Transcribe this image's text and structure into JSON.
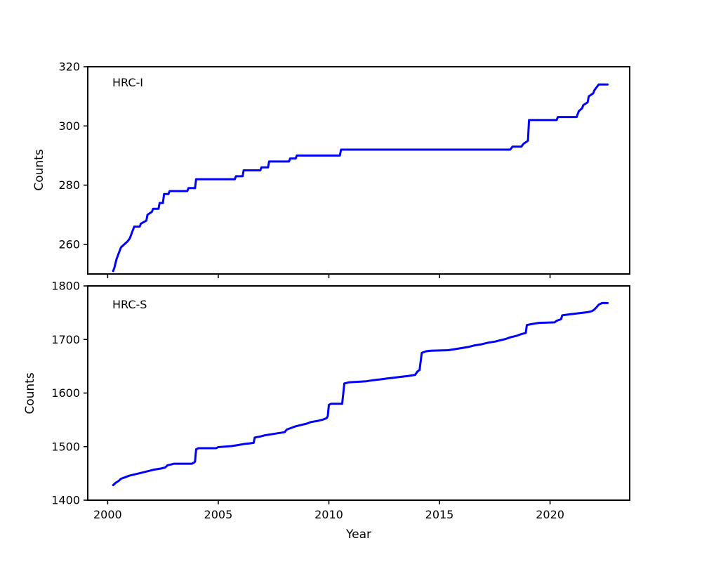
{
  "figure": {
    "background": "#ffffff",
    "axis_color": "#000000"
  },
  "chart_data": [
    {
      "type": "line",
      "label": "HRC-I",
      "ylabel": "Counts",
      "xlabel": "",
      "line_color": "#0000ff",
      "xlim": [
        1999.1,
        2023.6
      ],
      "ylim": [
        250,
        320
      ],
      "xticks": [
        2000,
        2005,
        2010,
        2015,
        2020
      ],
      "yticks": [
        260,
        280,
        300,
        320
      ],
      "show_xtick_labels": false,
      "grid": false,
      "points": [
        [
          2000.25,
          251
        ],
        [
          2000.3,
          252
        ],
        [
          2000.4,
          255
        ],
        [
          2000.5,
          257
        ],
        [
          2000.6,
          259
        ],
        [
          2000.75,
          260
        ],
        [
          2000.9,
          261
        ],
        [
          2001.0,
          262
        ],
        [
          2001.1,
          264
        ],
        [
          2001.2,
          266
        ],
        [
          2001.45,
          266
        ],
        [
          2001.5,
          267
        ],
        [
          2001.75,
          268
        ],
        [
          2001.8,
          270
        ],
        [
          2002.0,
          271
        ],
        [
          2002.05,
          272
        ],
        [
          2002.3,
          272
        ],
        [
          2002.35,
          274
        ],
        [
          2002.5,
          274
        ],
        [
          2002.55,
          277
        ],
        [
          2002.75,
          277
        ],
        [
          2002.8,
          278
        ],
        [
          2003.6,
          278
        ],
        [
          2003.65,
          279
        ],
        [
          2003.95,
          279
        ],
        [
          2004.0,
          282
        ],
        [
          2005.75,
          282
        ],
        [
          2005.8,
          283
        ],
        [
          2006.1,
          283
        ],
        [
          2006.15,
          285
        ],
        [
          2006.9,
          285
        ],
        [
          2006.95,
          286
        ],
        [
          2007.25,
          286
        ],
        [
          2007.3,
          288
        ],
        [
          2008.2,
          288
        ],
        [
          2008.25,
          289
        ],
        [
          2008.5,
          289
        ],
        [
          2008.55,
          290
        ],
        [
          2010.5,
          290
        ],
        [
          2010.55,
          292
        ],
        [
          2018.2,
          292
        ],
        [
          2018.3,
          293
        ],
        [
          2018.7,
          293
        ],
        [
          2018.8,
          294
        ],
        [
          2019.0,
          295
        ],
        [
          2019.05,
          302
        ],
        [
          2020.3,
          302
        ],
        [
          2020.35,
          303
        ],
        [
          2021.2,
          303
        ],
        [
          2021.3,
          305
        ],
        [
          2021.45,
          306
        ],
        [
          2021.5,
          307
        ],
        [
          2021.7,
          308
        ],
        [
          2021.75,
          310
        ],
        [
          2021.95,
          311
        ],
        [
          2022.0,
          312
        ],
        [
          2022.1,
          313
        ],
        [
          2022.2,
          314
        ],
        [
          2022.6,
          314
        ]
      ]
    },
    {
      "type": "line",
      "label": "HRC-S",
      "ylabel": "Counts",
      "xlabel": "Year",
      "line_color": "#0000ff",
      "xlim": [
        1999.1,
        2023.6
      ],
      "ylim": [
        1400,
        1800
      ],
      "xticks": [
        2000,
        2005,
        2010,
        2015,
        2020
      ],
      "yticks": [
        1400,
        1500,
        1600,
        1700,
        1800
      ],
      "show_xtick_labels": true,
      "grid": false,
      "points": [
        [
          2000.25,
          1428
        ],
        [
          2000.35,
          1432
        ],
        [
          2000.5,
          1436
        ],
        [
          2000.6,
          1440
        ],
        [
          2000.8,
          1443
        ],
        [
          2001.0,
          1446
        ],
        [
          2001.2,
          1448
        ],
        [
          2001.4,
          1450
        ],
        [
          2001.6,
          1452
        ],
        [
          2001.9,
          1455
        ],
        [
          2002.1,
          1457
        ],
        [
          2002.4,
          1459
        ],
        [
          2002.6,
          1461
        ],
        [
          2002.7,
          1465
        ],
        [
          2002.9,
          1467
        ],
        [
          2003.0,
          1468
        ],
        [
          2003.8,
          1468
        ],
        [
          2003.9,
          1470
        ],
        [
          2003.95,
          1472
        ],
        [
          2004.0,
          1495
        ],
        [
          2004.1,
          1497
        ],
        [
          2004.9,
          1497
        ],
        [
          2005.0,
          1499
        ],
        [
          2005.3,
          1500
        ],
        [
          2005.6,
          1501
        ],
        [
          2005.9,
          1503
        ],
        [
          2006.2,
          1505
        ],
        [
          2006.4,
          1506
        ],
        [
          2006.6,
          1507
        ],
        [
          2006.65,
          1517
        ],
        [
          2006.9,
          1519
        ],
        [
          2007.1,
          1521
        ],
        [
          2007.4,
          1523
        ],
        [
          2007.7,
          1525
        ],
        [
          2008.0,
          1527
        ],
        [
          2008.1,
          1532
        ],
        [
          2008.3,
          1535
        ],
        [
          2008.5,
          1538
        ],
        [
          2008.7,
          1540
        ],
        [
          2009.0,
          1543
        ],
        [
          2009.2,
          1546
        ],
        [
          2009.5,
          1548
        ],
        [
          2009.7,
          1550
        ],
        [
          2009.9,
          1553
        ],
        [
          2009.95,
          1557
        ],
        [
          2010.0,
          1578
        ],
        [
          2010.1,
          1580
        ],
        [
          2010.6,
          1580
        ],
        [
          2010.65,
          1598
        ],
        [
          2010.7,
          1618
        ],
        [
          2010.9,
          1620
        ],
        [
          2011.3,
          1621
        ],
        [
          2011.7,
          1622
        ],
        [
          2012.0,
          1624
        ],
        [
          2012.4,
          1626
        ],
        [
          2012.8,
          1628
        ],
        [
          2013.2,
          1630
        ],
        [
          2013.6,
          1632
        ],
        [
          2013.9,
          1634
        ],
        [
          2014.0,
          1640
        ],
        [
          2014.1,
          1643
        ],
        [
          2014.2,
          1675
        ],
        [
          2014.4,
          1678
        ],
        [
          2014.6,
          1679
        ],
        [
          2015.4,
          1680
        ],
        [
          2015.7,
          1682
        ],
        [
          2016.0,
          1684
        ],
        [
          2016.3,
          1686
        ],
        [
          2016.6,
          1689
        ],
        [
          2016.9,
          1691
        ],
        [
          2017.2,
          1694
        ],
        [
          2017.5,
          1696
        ],
        [
          2017.8,
          1699
        ],
        [
          2018.0,
          1701
        ],
        [
          2018.2,
          1704
        ],
        [
          2018.5,
          1707
        ],
        [
          2018.7,
          1710
        ],
        [
          2018.9,
          1712
        ],
        [
          2018.95,
          1727
        ],
        [
          2019.2,
          1729
        ],
        [
          2019.5,
          1731
        ],
        [
          2020.2,
          1732
        ],
        [
          2020.3,
          1735
        ],
        [
          2020.5,
          1738
        ],
        [
          2020.55,
          1745
        ],
        [
          2020.9,
          1747
        ],
        [
          2021.3,
          1749
        ],
        [
          2021.7,
          1751
        ],
        [
          2021.9,
          1753
        ],
        [
          2022.0,
          1756
        ],
        [
          2022.1,
          1760
        ],
        [
          2022.2,
          1765
        ],
        [
          2022.35,
          1768
        ],
        [
          2022.6,
          1768
        ]
      ]
    }
  ]
}
